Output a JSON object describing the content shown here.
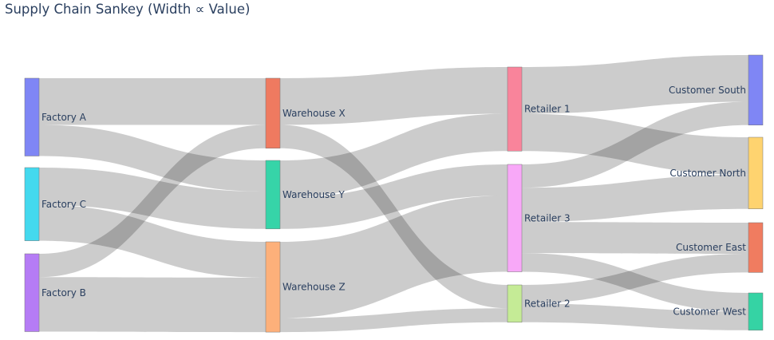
{
  "title": "Supply Chain Sankey (Width ∝ Value)",
  "chart_data": {
    "type": "sankey",
    "title": "Supply Chain Sankey (Width ∝ Value)",
    "link_color": "rgba(0,0,0,0.2)",
    "nodes": [
      {
        "id": "fa",
        "label": "Factory A",
        "column": 0,
        "color": "#7f86f5"
      },
      {
        "id": "fc",
        "label": "Factory C",
        "column": 0,
        "color": "#44d9ee"
      },
      {
        "id": "fb",
        "label": "Factory B",
        "column": 0,
        "color": "#b57cf5"
      },
      {
        "id": "wx",
        "label": "Warehouse X",
        "column": 1,
        "color": "#ef7a60"
      },
      {
        "id": "wy",
        "label": "Warehouse Y",
        "column": 1,
        "color": "#36d4a8"
      },
      {
        "id": "wz",
        "label": "Warehouse Z",
        "column": 1,
        "color": "#fdb07a"
      },
      {
        "id": "r1",
        "label": "Retailer 1",
        "column": 2,
        "color": "#f9849b"
      },
      {
        "id": "r3",
        "label": "Retailer 3",
        "column": 2,
        "color": "#f8a8f8"
      },
      {
        "id": "r2",
        "label": "Retailer 2",
        "column": 2,
        "color": "#c5eb96"
      },
      {
        "id": "cs",
        "label": "Customer South",
        "column": 3,
        "color": "#7f86f5"
      },
      {
        "id": "cn",
        "label": "Customer North",
        "column": 3,
        "color": "#fed36f"
      },
      {
        "id": "ce",
        "label": "Customer East",
        "column": 3,
        "color": "#f07c60"
      },
      {
        "id": "cw",
        "label": "Customer West",
        "column": 3,
        "color": "#35d3a4"
      }
    ],
    "links": [
      {
        "source": "fa",
        "target": "wx",
        "value": 30
      },
      {
        "source": "fa",
        "target": "wy",
        "value": 20
      },
      {
        "source": "fc",
        "target": "wy",
        "value": 24
      },
      {
        "source": "fc",
        "target": "wz",
        "value": 23
      },
      {
        "source": "fb",
        "target": "wx",
        "value": 15
      },
      {
        "source": "fb",
        "target": "wz",
        "value": 35
      },
      {
        "source": "wx",
        "target": "r1",
        "value": 30
      },
      {
        "source": "wx",
        "target": "r2",
        "value": 15
      },
      {
        "source": "wy",
        "target": "r1",
        "value": 24
      },
      {
        "source": "wy",
        "target": "r3",
        "value": 20
      },
      {
        "source": "wz",
        "target": "r3",
        "value": 49
      },
      {
        "source": "wz",
        "target": "r2",
        "value": 9
      },
      {
        "source": "r1",
        "target": "cs",
        "value": 30
      },
      {
        "source": "r1",
        "target": "cn",
        "value": 24
      },
      {
        "source": "r3",
        "target": "cs",
        "value": 15
      },
      {
        "source": "r3",
        "target": "cn",
        "value": 22
      },
      {
        "source": "r3",
        "target": "ce",
        "value": 20
      },
      {
        "source": "r3",
        "target": "cw",
        "value": 12
      },
      {
        "source": "r2",
        "target": "ce",
        "value": 12
      },
      {
        "source": "r2",
        "target": "cw",
        "value": 12
      }
    ]
  }
}
